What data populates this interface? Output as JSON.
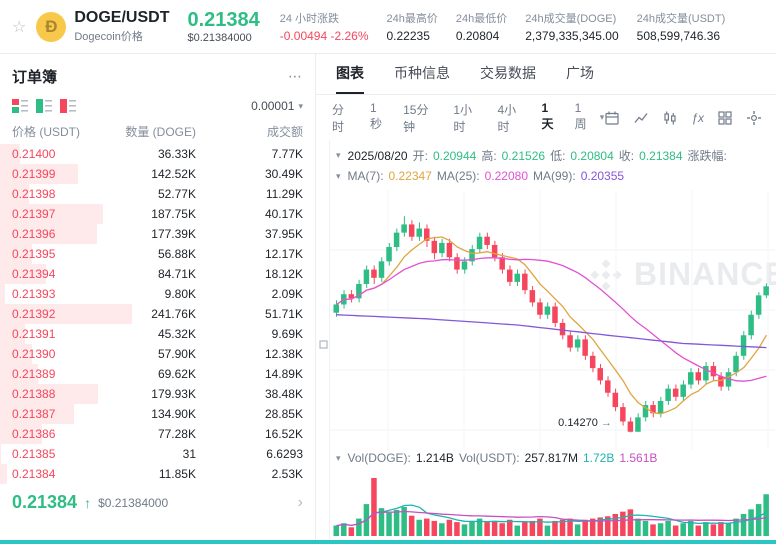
{
  "icons": {
    "favorite": "☆",
    "doge_glyph": "Ð",
    "more": "⋯",
    "caret_down": "▾",
    "chevron_right": "›",
    "up_arrow": "↑",
    "low_arrow": "→"
  },
  "header": {
    "pair": "DOGE/USDT",
    "subtitle": "Dogecoin价格",
    "price": "0.21384",
    "price_usd": "$0.21384000",
    "stats": [
      {
        "label": "24 小时涨跌",
        "value": "-0.00494 -2.26%",
        "tone": "down"
      },
      {
        "label": "24h最高价",
        "value": "0.22235",
        "tone": "normal"
      },
      {
        "label": "24h最低价",
        "value": "0.20804",
        "tone": "normal"
      },
      {
        "label": "24h成交量(DOGE)",
        "value": "2,379,335,345.00",
        "tone": "normal"
      },
      {
        "label": "24h成交量(USDT)",
        "value": "508,599,746.36",
        "tone": "normal"
      }
    ]
  },
  "orderbook": {
    "title": "订单簿",
    "precision": "0.00001",
    "columns": [
      "价格 (USDT)",
      "数量 (DOGE)",
      "成交额"
    ],
    "asks": [
      {
        "price": "0.21400",
        "qty": "36.33K",
        "total": "7.77K",
        "depth": 0.15
      },
      {
        "price": "0.21399",
        "qty": "142.52K",
        "total": "30.49K",
        "depth": 0.59
      },
      {
        "price": "0.21398",
        "qty": "52.77K",
        "total": "11.29K",
        "depth": 0.22
      },
      {
        "price": "0.21397",
        "qty": "187.75K",
        "total": "40.17K",
        "depth": 0.78
      },
      {
        "price": "0.21396",
        "qty": "177.39K",
        "total": "37.95K",
        "depth": 0.73
      },
      {
        "price": "0.21395",
        "qty": "56.88K",
        "total": "12.17K",
        "depth": 0.24
      },
      {
        "price": "0.21394",
        "qty": "84.71K",
        "total": "18.12K",
        "depth": 0.35
      },
      {
        "price": "0.21393",
        "qty": "9.80K",
        "total": "2.09K",
        "depth": 0.04
      },
      {
        "price": "0.21392",
        "qty": "241.76K",
        "total": "51.71K",
        "depth": 1.0
      },
      {
        "price": "0.21391",
        "qty": "45.32K",
        "total": "9.69K",
        "depth": 0.19
      },
      {
        "price": "0.21390",
        "qty": "57.90K",
        "total": "12.38K",
        "depth": 0.24
      },
      {
        "price": "0.21389",
        "qty": "69.62K",
        "total": "14.89K",
        "depth": 0.29
      },
      {
        "price": "0.21388",
        "qty": "179.93K",
        "total": "38.48K",
        "depth": 0.74
      },
      {
        "price": "0.21387",
        "qty": "134.90K",
        "total": "28.85K",
        "depth": 0.56
      },
      {
        "price": "0.21386",
        "qty": "77.28K",
        "total": "16.52K",
        "depth": 0.32
      },
      {
        "price": "0.21385",
        "qty": "31",
        "total": "6.6293",
        "depth": 0.01
      },
      {
        "price": "0.21384",
        "qty": "11.85K",
        "total": "2.53K",
        "depth": 0.05
      }
    ],
    "last_price": "0.21384",
    "last_usd": "$0.21384000"
  },
  "tabs": [
    {
      "label": "图表",
      "active": true
    },
    {
      "label": "币种信息",
      "active": false
    },
    {
      "label": "交易数据",
      "active": false
    },
    {
      "label": "广场",
      "active": false
    }
  ],
  "toolbar": {
    "timeframes": [
      "分时",
      "1秒",
      "15分钟",
      "1小时",
      "4小时",
      "1天",
      "1周"
    ],
    "active_timeframe": "1天"
  },
  "chart_info": {
    "date": "2025/08/20",
    "open_label": "开:",
    "open": "0.20944",
    "high_label": "高:",
    "high": "0.21526",
    "low_label": "低:",
    "low": "0.20804",
    "close_label": "收:",
    "close": "0.21384",
    "change_label": "涨跌幅:",
    "ma7_label": "MA(7):",
    "ma7": "0.22347",
    "ma25_label": "MA(25):",
    "ma25": "0.22080",
    "ma99_label": "MA(99):",
    "ma99": "0.20355",
    "low_marker": "0.14270",
    "vol_doge_label": "Vol(DOGE):",
    "vol_doge": "1.214B",
    "vol_usdt_label": "Vol(USDT):",
    "vol_usdt": "257.817M",
    "vol_ma1": "1.72B",
    "vol_ma2": "1.561B",
    "watermark": "BINANCE"
  },
  "chart_data": {
    "type": "candlestick",
    "timeframe": "1天",
    "last_candle": {
      "date": "2025/08/20",
      "open": 0.20944,
      "high": 0.21526,
      "low": 0.20804,
      "close": 0.21384
    },
    "chart_low": 0.1427,
    "price_range": [
      0.138,
      0.252
    ],
    "candles": [
      [
        0.201,
        0.207,
        0.199,
        0.205
      ],
      [
        0.205,
        0.212,
        0.203,
        0.21
      ],
      [
        0.21,
        0.212,
        0.206,
        0.208
      ],
      [
        0.208,
        0.217,
        0.206,
        0.215
      ],
      [
        0.215,
        0.224,
        0.213,
        0.222
      ],
      [
        0.222,
        0.224,
        0.215,
        0.218
      ],
      [
        0.218,
        0.228,
        0.216,
        0.226
      ],
      [
        0.226,
        0.235,
        0.224,
        0.233
      ],
      [
        0.233,
        0.242,
        0.231,
        0.24
      ],
      [
        0.24,
        0.248,
        0.238,
        0.244
      ],
      [
        0.244,
        0.246,
        0.236,
        0.238
      ],
      [
        0.238,
        0.245,
        0.236,
        0.242
      ],
      [
        0.242,
        0.244,
        0.233,
        0.236
      ],
      [
        0.236,
        0.238,
        0.227,
        0.23
      ],
      [
        0.23,
        0.237,
        0.228,
        0.235
      ],
      [
        0.235,
        0.237,
        0.226,
        0.228
      ],
      [
        0.228,
        0.23,
        0.22,
        0.222
      ],
      [
        0.222,
        0.228,
        0.22,
        0.226
      ],
      [
        0.226,
        0.234,
        0.224,
        0.232
      ],
      [
        0.232,
        0.24,
        0.23,
        0.238
      ],
      [
        0.238,
        0.24,
        0.232,
        0.234
      ],
      [
        0.234,
        0.236,
        0.226,
        0.228
      ],
      [
        0.228,
        0.23,
        0.22,
        0.222
      ],
      [
        0.222,
        0.224,
        0.214,
        0.216
      ],
      [
        0.216,
        0.222,
        0.214,
        0.22
      ],
      [
        0.22,
        0.222,
        0.21,
        0.212
      ],
      [
        0.212,
        0.214,
        0.204,
        0.206
      ],
      [
        0.206,
        0.208,
        0.198,
        0.2
      ],
      [
        0.2,
        0.206,
        0.198,
        0.204
      ],
      [
        0.204,
        0.206,
        0.194,
        0.196
      ],
      [
        0.196,
        0.198,
        0.188,
        0.19
      ],
      [
        0.19,
        0.192,
        0.182,
        0.184
      ],
      [
        0.184,
        0.19,
        0.182,
        0.188
      ],
      [
        0.188,
        0.19,
        0.178,
        0.18
      ],
      [
        0.18,
        0.182,
        0.172,
        0.174
      ],
      [
        0.174,
        0.176,
        0.166,
        0.168
      ],
      [
        0.168,
        0.17,
        0.16,
        0.162
      ],
      [
        0.162,
        0.164,
        0.153,
        0.155
      ],
      [
        0.155,
        0.157,
        0.146,
        0.148
      ],
      [
        0.148,
        0.15,
        0.1427,
        0.143
      ],
      [
        0.143,
        0.152,
        0.143,
        0.15
      ],
      [
        0.15,
        0.158,
        0.148,
        0.156
      ],
      [
        0.156,
        0.158,
        0.15,
        0.152
      ],
      [
        0.152,
        0.16,
        0.15,
        0.158
      ],
      [
        0.158,
        0.166,
        0.156,
        0.164
      ],
      [
        0.164,
        0.166,
        0.158,
        0.16
      ],
      [
        0.16,
        0.168,
        0.158,
        0.166
      ],
      [
        0.166,
        0.174,
        0.164,
        0.172
      ],
      [
        0.172,
        0.174,
        0.166,
        0.168
      ],
      [
        0.168,
        0.177,
        0.166,
        0.175
      ],
      [
        0.175,
        0.177,
        0.168,
        0.17
      ],
      [
        0.17,
        0.172,
        0.163,
        0.165
      ],
      [
        0.165,
        0.174,
        0.163,
        0.172
      ],
      [
        0.172,
        0.182,
        0.17,
        0.18
      ],
      [
        0.18,
        0.192,
        0.178,
        0.19
      ],
      [
        0.19,
        0.202,
        0.188,
        0.2
      ],
      [
        0.2,
        0.211,
        0.198,
        0.20944
      ],
      [
        0.20944,
        0.21526,
        0.20804,
        0.21384
      ]
    ],
    "volumes": [
      18,
      22,
      15,
      30,
      55,
      100,
      48,
      40,
      45,
      50,
      35,
      28,
      30,
      26,
      22,
      28,
      24,
      20,
      26,
      30,
      24,
      26,
      22,
      28,
      18,
      24,
      26,
      30,
      18,
      26,
      28,
      30,
      20,
      28,
      30,
      32,
      34,
      38,
      42,
      46,
      30,
      26,
      20,
      22,
      26,
      18,
      22,
      26,
      18,
      24,
      20,
      24,
      22,
      30,
      38,
      46,
      55,
      72
    ],
    "ma99_points": [
      [
        0,
        0.2
      ],
      [
        12,
        0.198
      ],
      [
        24,
        0.195
      ],
      [
        36,
        0.19
      ],
      [
        46,
        0.186
      ],
      [
        57,
        0.184
      ]
    ],
    "colors": {
      "up": "#2EBD85",
      "down": "#F6465D",
      "ma7": "#E0A43F",
      "ma25": "#E252D2",
      "ma99": "#8456D9",
      "vol_ma7": "#1CB5AE",
      "vol_ma25": "#C750C0"
    }
  }
}
